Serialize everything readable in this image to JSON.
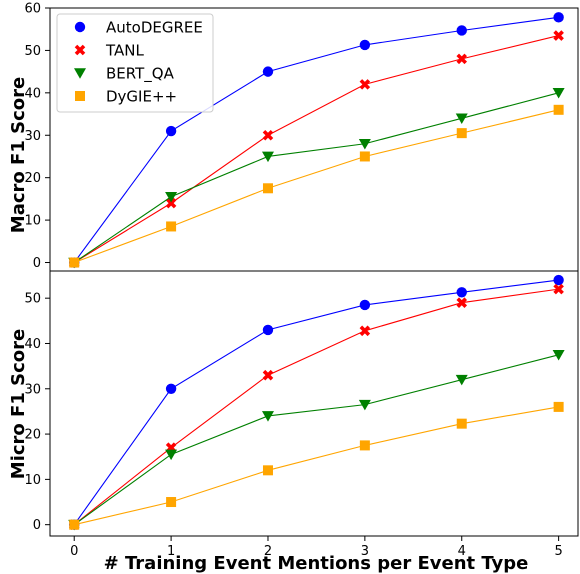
{
  "chart_data": [
    {
      "type": "line",
      "x": [
        0,
        1,
        2,
        3,
        4,
        5
      ],
      "xlim": [
        -0.25,
        5.2
      ],
      "ylim": [
        -2,
        60
      ],
      "yticks": [
        0,
        10,
        20,
        30,
        40,
        50,
        60
      ],
      "ylabel": "Macro F1 Score",
      "legend": "top-left",
      "series": [
        {
          "name": "AutoDEGREE",
          "color": "#0000ff",
          "marker": "circle",
          "values": [
            0,
            31,
            45,
            51.3,
            54.7,
            57.8
          ]
        },
        {
          "name": "TANL",
          "color": "#ff0000",
          "marker": "x",
          "values": [
            0,
            14,
            30,
            42,
            48,
            53.5
          ]
        },
        {
          "name": "BERT_QA",
          "color": "#008000",
          "marker": "triangle-down",
          "values": [
            0,
            15.5,
            25,
            28,
            34,
            40
          ]
        },
        {
          "name": "DyGIE++",
          "color": "#ffa500",
          "marker": "square",
          "values": [
            0,
            8.5,
            17.5,
            25,
            30.5,
            36
          ]
        }
      ]
    },
    {
      "type": "line",
      "x": [
        0,
        1,
        2,
        3,
        4,
        5
      ],
      "xlim": [
        -0.25,
        5.2
      ],
      "ylim": [
        -2.5,
        56
      ],
      "yticks": [
        0,
        10,
        20,
        30,
        40,
        50
      ],
      "xticks": [
        0,
        1,
        2,
        3,
        4,
        5
      ],
      "ylabel": "Micro F1 Score",
      "xlabel": "# Training Event Mentions per Event Type",
      "series": [
        {
          "name": "AutoDEGREE",
          "color": "#0000ff",
          "marker": "circle",
          "values": [
            0,
            30,
            43,
            48.5,
            51.3,
            54
          ]
        },
        {
          "name": "TANL",
          "color": "#ff0000",
          "marker": "x",
          "values": [
            0,
            17,
            33,
            42.8,
            49,
            52
          ]
        },
        {
          "name": "BERT_QA",
          "color": "#008000",
          "marker": "triangle-down",
          "values": [
            0,
            15.5,
            24,
            26.5,
            32,
            37.5
          ]
        },
        {
          "name": "DyGIE++",
          "color": "#ffa500",
          "marker": "square",
          "values": [
            0,
            5,
            12,
            17.5,
            22.3,
            26
          ]
        }
      ]
    }
  ]
}
